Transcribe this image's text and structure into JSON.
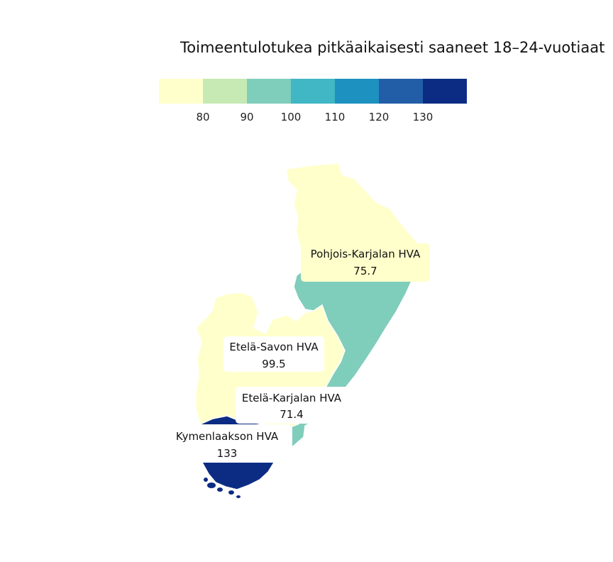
{
  "title": "Toimeentulotukea pitkäaikaisesti saaneet 18–24-vuotiaat",
  "legend": {
    "colors": [
      "#ffffcc",
      "#c7e9b4",
      "#7fcdbb",
      "#41b6c4",
      "#1d91c0",
      "#225ea8",
      "#0c2c84"
    ],
    "breaks": [
      "80",
      "90",
      "100",
      "110",
      "120",
      "130"
    ]
  },
  "regions": [
    {
      "name": "Pohjois-Karjalan HVA",
      "value": "75.7",
      "color": "#ffffcc"
    },
    {
      "name": "Etelä-Savon HVA",
      "value": "99.5",
      "color": "#7fcdbb"
    },
    {
      "name": "Etelä-Karjalan HVA",
      "value": "71.4",
      "color": "#ffffcc"
    },
    {
      "name": "Kymenlaakson HVA",
      "value": "133",
      "color": "#0c2c84"
    }
  ]
}
